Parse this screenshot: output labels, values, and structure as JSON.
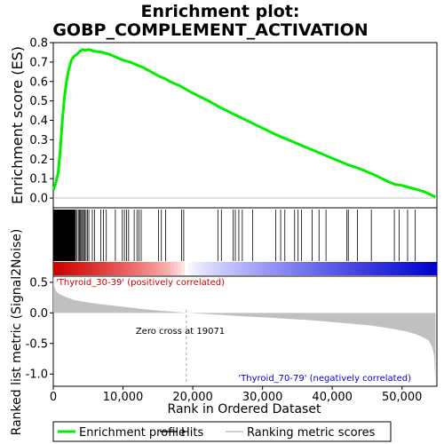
{
  "chart_data": {
    "type": "line",
    "title_line1": "Enrichment plot:",
    "title_line2": "GOBP_COMPLEMENT_ACTIVATION",
    "es_panel": {
      "ylabel": "Enrichment score (ES)",
      "ylim": [
        -0.05,
        0.8
      ],
      "yticks": [
        "0.0",
        "0.1",
        "0.2",
        "0.3",
        "0.4",
        "0.5",
        "0.6",
        "0.7",
        "0.8"
      ],
      "ytick_values": [
        0.0,
        0.1,
        0.2,
        0.3,
        0.4,
        0.5,
        0.6,
        0.7,
        0.8
      ],
      "line_color": "#00ee00",
      "x": [
        0,
        300,
        700,
        1000,
        1300,
        1600,
        1900,
        2200,
        2600,
        3000,
        3400,
        3800,
        4200,
        4600,
        5000,
        6000,
        7000,
        8000,
        9000,
        10000,
        11000,
        12000,
        13000,
        14000,
        15000,
        16000,
        17000,
        18000,
        19000,
        20000,
        22000,
        24000,
        26000,
        28000,
        30000,
        32000,
        34000,
        36000,
        38000,
        40000,
        42000,
        44000,
        46000,
        48000,
        49000,
        50000,
        51000,
        52000,
        53000,
        54000,
        54800
      ],
      "y": [
        0.04,
        0.07,
        0.13,
        0.25,
        0.4,
        0.52,
        0.6,
        0.66,
        0.71,
        0.73,
        0.74,
        0.755,
        0.765,
        0.76,
        0.765,
        0.755,
        0.75,
        0.74,
        0.725,
        0.71,
        0.7,
        0.685,
        0.67,
        0.65,
        0.63,
        0.615,
        0.595,
        0.58,
        0.56,
        0.54,
        0.505,
        0.465,
        0.43,
        0.395,
        0.36,
        0.325,
        0.295,
        0.265,
        0.235,
        0.205,
        0.175,
        0.15,
        0.12,
        0.085,
        0.07,
        0.065,
        0.055,
        0.045,
        0.035,
        0.02,
        0.005
      ]
    },
    "hits": [
      20,
      60,
      110,
      160,
      210,
      260,
      310,
      360,
      410,
      460,
      510,
      560,
      610,
      660,
      710,
      760,
      810,
      860,
      910,
      960,
      1010,
      1060,
      1110,
      1160,
      1210,
      1260,
      1310,
      1360,
      1410,
      1460,
      1510,
      1560,
      1610,
      1660,
      1710,
      1760,
      1810,
      1860,
      1910,
      1960,
      2010,
      2060,
      2110,
      2160,
      2210,
      2260,
      2310,
      2360,
      2410,
      2460,
      2510,
      2560,
      2610,
      2660,
      2710,
      2760,
      2810,
      2860,
      2910,
      2960,
      3010,
      3060,
      3110,
      3200,
      3400,
      3600,
      3750,
      3900,
      4050,
      4200,
      4350,
      4500,
      4700,
      4900,
      5100,
      5600,
      5900,
      6800,
      7200,
      7600,
      8900,
      9900,
      10200,
      10500,
      10800,
      11600,
      12000,
      12300,
      12600,
      15100,
      15500,
      16100,
      18400,
      18700,
      23600,
      24100,
      25800,
      26100,
      26600,
      27100,
      28600,
      31900,
      32600,
      33200,
      34600,
      35100,
      35600,
      37100,
      38100,
      39100,
      42100,
      42300,
      43600,
      45600,
      48900,
      49600,
      50800,
      51900
    ],
    "ranking_panel": {
      "ylabel": "Ranked list metric (Signal2Noise)",
      "ylim": [
        -1.2,
        0.6
      ],
      "yticks": [
        "-1.0",
        "-0.5",
        "0.0",
        "0.5"
      ],
      "ytick_values": [
        -1.0,
        -0.5,
        0.0,
        0.5
      ],
      "x": [
        0,
        100,
        300,
        600,
        1000,
        2000,
        3000,
        4000,
        5000,
        7000,
        10000,
        13000,
        16000,
        19071,
        22000,
        25000,
        28000,
        31000,
        34000,
        37000,
        40000,
        43000,
        45000,
        47000,
        49000,
        50500,
        52000,
        53000,
        53800,
        54300,
        54600,
        54800
      ],
      "y": [
        0.62,
        0.45,
        0.38,
        0.33,
        0.3,
        0.25,
        0.21,
        0.19,
        0.17,
        0.14,
        0.1,
        0.06,
        0.03,
        0.0,
        -0.02,
        -0.04,
        -0.06,
        -0.08,
        -0.1,
        -0.12,
        -0.15,
        -0.18,
        -0.2,
        -0.23,
        -0.27,
        -0.3,
        -0.35,
        -0.4,
        -0.45,
        -0.55,
        -0.7,
        -1.15
      ]
    },
    "zero_cross_label": "Zero cross at 19071",
    "zero_cross_x": 19071,
    "pos_label": "'Thyroid_30-39' (positively correlated)",
    "neg_label": "'Thyroid_70-79' (negatively correlated)",
    "xlabel": "Rank in Ordered Dataset",
    "xlim": [
      0,
      55000
    ],
    "xticks": [
      "0",
      "10,000",
      "20,000",
      "30,000",
      "40,000",
      "50,000"
    ],
    "xtick_values": [
      0,
      10000,
      20000,
      30000,
      40000,
      50000
    ],
    "legend": [
      {
        "label": "Enrichment profile",
        "color": "#00ee00"
      },
      {
        "label": "Hits",
        "color": "#000000"
      },
      {
        "label": "Ranking metric scores",
        "color": "#c0c0c0"
      }
    ]
  }
}
